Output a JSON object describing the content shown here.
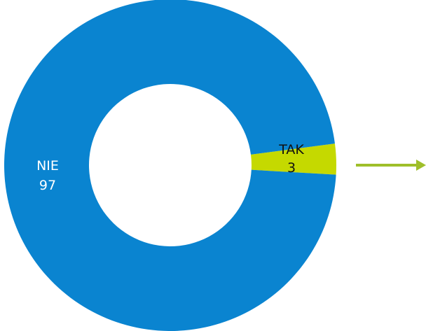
{
  "chart_data": {
    "type": "pie",
    "donut": true,
    "slices": [
      {
        "label": "TAK",
        "value": 3,
        "color": "#c5d900",
        "label_color": "#111111"
      },
      {
        "label": "NIE",
        "value": 97,
        "color": "#0a84d0",
        "label_color": "#ffffff"
      }
    ],
    "arrow": {
      "direction": "right",
      "color": "#9fbf2a"
    }
  }
}
